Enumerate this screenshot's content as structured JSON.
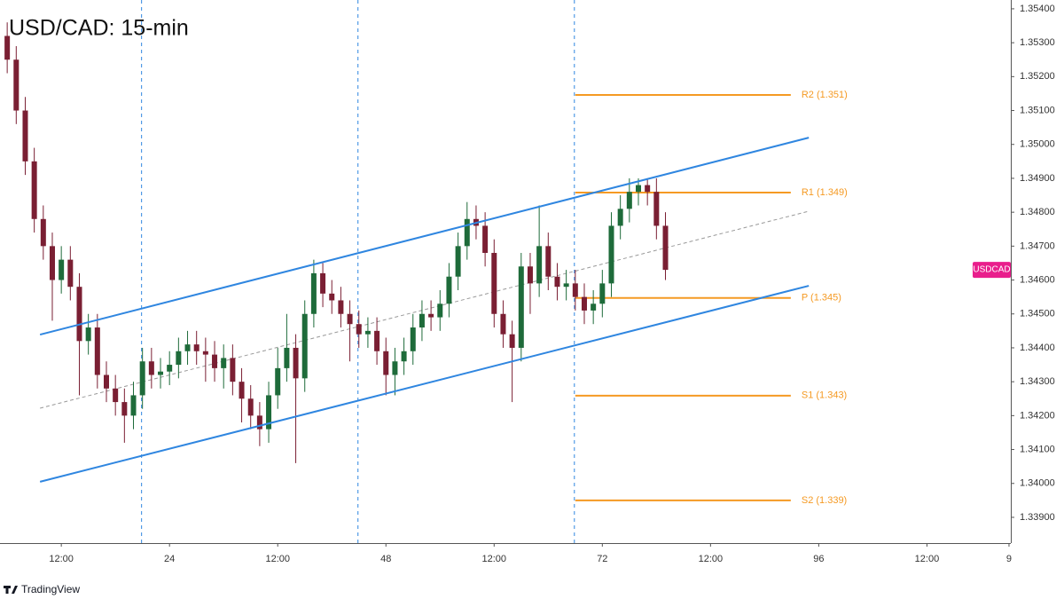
{
  "chart_data": {
    "type": "candlestick",
    "title": "USD/CAD: 15-min",
    "symbol": "USDCAD",
    "branding": "TradingView",
    "up_color": "#1e6b3a",
    "down_color": "#7a1f33",
    "xlim": [
      5.2,
      117.3
    ],
    "ylim": [
      1.33824,
      1.35426
    ],
    "xticks": [
      {
        "value": 12,
        "label": "12:00"
      },
      24,
      {
        "value": 36,
        "label": "12:00"
      },
      48,
      {
        "value": 60,
        "label": "12:00"
      },
      72,
      {
        "value": 84,
        "label": "12:00"
      },
      96,
      {
        "value": 108,
        "label": "12:00"
      },
      {
        "value": 117.1,
        "label": "9"
      }
    ],
    "yticks": [
      {
        "value": 1.354,
        "label": "1.35400"
      },
      {
        "value": 1.353,
        "label": "1.35300"
      },
      {
        "value": 1.352,
        "label": "1.35200"
      },
      {
        "value": 1.351,
        "label": "1.35100"
      },
      {
        "value": 1.35,
        "label": "1.35000"
      },
      {
        "value": 1.349,
        "label": "1.34900"
      },
      {
        "value": 1.348,
        "label": "1.34800"
      },
      {
        "value": 1.347,
        "label": "1.34700"
      },
      {
        "value": 1.346,
        "label": "1.34600"
      },
      {
        "value": 1.345,
        "label": "1.34500"
      },
      {
        "value": 1.344,
        "label": "1.34400"
      },
      {
        "value": 1.343,
        "label": "1.34300"
      },
      {
        "value": 1.342,
        "label": "1.34200"
      },
      {
        "value": 1.341,
        "label": "1.34100"
      },
      {
        "value": 1.34,
        "label": "1.34000"
      },
      {
        "value": 1.339,
        "label": "1.33900"
      }
    ],
    "x": [
      6,
      7,
      8,
      9,
      10,
      11,
      12,
      13,
      14,
      15,
      16,
      17,
      18,
      19,
      20,
      21,
      22,
      23,
      24,
      25,
      26,
      27,
      28,
      29,
      30,
      31,
      32,
      33,
      34,
      35,
      36,
      37,
      38,
      39,
      40,
      41,
      42,
      43,
      44,
      45,
      46,
      47,
      48,
      49,
      50,
      51,
      52,
      53,
      54,
      55,
      56,
      57,
      58,
      59,
      60,
      61,
      62,
      63,
      64,
      65,
      66,
      67,
      68,
      69,
      70,
      71,
      72,
      73,
      74,
      75,
      76,
      77,
      78,
      79
    ],
    "open": [
      1.3532,
      1.3525,
      1.351,
      1.3495,
      1.3478,
      1.347,
      1.346,
      1.3466,
      1.3458,
      1.3442,
      1.3446,
      1.3432,
      1.3428,
      1.3424,
      1.342,
      1.3426,
      1.3436,
      1.3432,
      1.3433,
      1.3435,
      1.3439,
      1.3441,
      1.3439,
      1.3438,
      1.3434,
      1.3437,
      1.343,
      1.3425,
      1.342,
      1.3416,
      1.3426,
      1.3434,
      1.344,
      1.3431,
      1.345,
      1.3462,
      1.3456,
      1.3454,
      1.345,
      1.3447,
      1.3444,
      1.3445,
      1.3439,
      1.3432,
      1.3436,
      1.3439,
      1.3446,
      1.345,
      1.3449,
      1.3453,
      1.3461,
      1.347,
      1.3478,
      1.3476,
      1.3468,
      1.345,
      1.3444,
      1.344,
      1.3464,
      1.3459,
      1.347,
      1.3461,
      1.3458,
      1.3459,
      1.3455,
      1.3451,
      1.3453,
      1.3459,
      1.3476,
      1.3481,
      1.3486,
      1.3488,
      1.3486,
      1.3476
    ],
    "high": [
      1.3536,
      1.3529,
      1.3514,
      1.3499,
      1.3482,
      1.3474,
      1.347,
      1.347,
      1.3462,
      1.345,
      1.345,
      1.3436,
      1.3432,
      1.3428,
      1.343,
      1.344,
      1.344,
      1.3437,
      1.3439,
      1.3443,
      1.3445,
      1.3445,
      1.3443,
      1.3442,
      1.3441,
      1.3441,
      1.3434,
      1.3429,
      1.3424,
      1.343,
      1.344,
      1.345,
      1.3444,
      1.3454,
      1.3466,
      1.3465,
      1.346,
      1.3458,
      1.3454,
      1.3451,
      1.3449,
      1.3449,
      1.3443,
      1.344,
      1.3443,
      1.345,
      1.3454,
      1.3454,
      1.3457,
      1.3465,
      1.3474,
      1.3483,
      1.3482,
      1.348,
      1.3472,
      1.3454,
      1.3448,
      1.3468,
      1.3468,
      1.3482,
      1.3474,
      1.3465,
      1.3463,
      1.3463,
      1.3459,
      1.3457,
      1.3463,
      1.348,
      1.3485,
      1.349,
      1.349,
      1.349,
      1.349,
      1.348
    ],
    "low": [
      1.3521,
      1.3506,
      1.3491,
      1.3474,
      1.3466,
      1.3448,
      1.3456,
      1.3454,
      1.3426,
      1.3438,
      1.3428,
      1.3424,
      1.342,
      1.3412,
      1.3416,
      1.3422,
      1.3428,
      1.3428,
      1.3429,
      1.3431,
      1.3435,
      1.3435,
      1.343,
      1.343,
      1.3428,
      1.3426,
      1.3418,
      1.3416,
      1.3411,
      1.3412,
      1.3422,
      1.343,
      1.3406,
      1.3427,
      1.3446,
      1.3452,
      1.345,
      1.3446,
      1.3436,
      1.344,
      1.344,
      1.3435,
      1.3426,
      1.3426,
      1.3432,
      1.3435,
      1.3442,
      1.3445,
      1.3445,
      1.3449,
      1.3457,
      1.3466,
      1.3472,
      1.3464,
      1.3446,
      1.344,
      1.3424,
      1.3436,
      1.345,
      1.3455,
      1.3457,
      1.3454,
      1.3454,
      1.3451,
      1.3447,
      1.3447,
      1.3449,
      1.3455,
      1.3472,
      1.3477,
      1.3482,
      1.3482,
      1.3472,
      1.346
    ],
    "close": [
      1.3525,
      1.351,
      1.3495,
      1.3478,
      1.347,
      1.346,
      1.3466,
      1.3458,
      1.3442,
      1.3446,
      1.3432,
      1.3428,
      1.3424,
      1.342,
      1.3426,
      1.3436,
      1.3432,
      1.3433,
      1.3435,
      1.3439,
      1.3441,
      1.3439,
      1.3438,
      1.3434,
      1.3437,
      1.343,
      1.3425,
      1.342,
      1.3416,
      1.3426,
      1.3434,
      1.344,
      1.3431,
      1.345,
      1.3462,
      1.3456,
      1.3454,
      1.345,
      1.3447,
      1.3444,
      1.3445,
      1.3439,
      1.3432,
      1.3436,
      1.3439,
      1.3446,
      1.345,
      1.3449,
      1.3453,
      1.3461,
      1.347,
      1.3478,
      1.3476,
      1.3468,
      1.345,
      1.3444,
      1.344,
      1.3464,
      1.3459,
      1.347,
      1.3461,
      1.3458,
      1.3459,
      1.3455,
      1.3451,
      1.3453,
      1.3459,
      1.3476,
      1.3481,
      1.3486,
      1.3488,
      1.3486,
      1.3476,
      1.3463
    ],
    "channel_color": "#2f86e0",
    "channel_lines": [
      {
        "x": [
          9.64,
          94.9
        ],
        "y": [
          1.34439,
          1.3502
        ]
      },
      {
        "x": [
          9.64,
          94.9
        ],
        "y": [
          1.34005,
          1.34583
        ]
      }
    ],
    "midline": {
      "x": [
        9.64,
        94.9
      ],
      "y": [
        1.34222,
        1.34803
      ]
    },
    "session_lines": [
      20.9,
      44.9,
      68.9
    ],
    "pivot_color": "#f59a23",
    "pivot_x": [
      69.0,
      92.9
    ],
    "pivots": [
      {
        "value": 1.35146,
        "label": "R2 (1.351)"
      },
      {
        "value": 1.34858,
        "label": "R1 (1.349)"
      },
      {
        "value": 1.34547,
        "label": "P (1.345)"
      },
      {
        "value": 1.34259,
        "label": "S1 (1.343)"
      },
      {
        "value": 1.3395,
        "label": "S2 (1.339)"
      }
    ],
    "badge_color": "#e91e8c"
  }
}
